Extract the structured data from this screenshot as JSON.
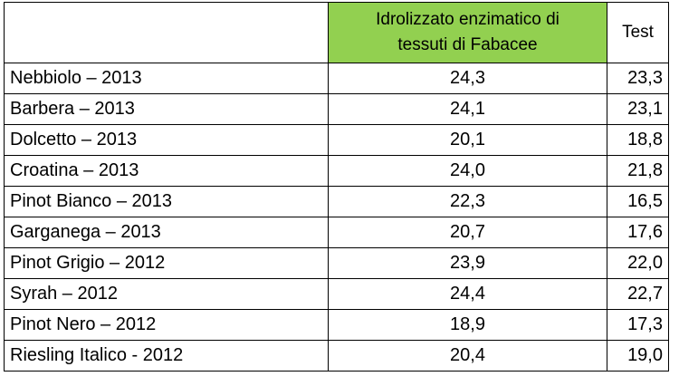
{
  "table": {
    "header": [
      "",
      "Idrolizzato enzimatico di tessuti di Fabacee",
      "Test"
    ],
    "rows": [
      [
        "Nebbiolo – 2013",
        "24,3",
        "23,3"
      ],
      [
        "Barbera – 2013",
        "24,1",
        "23,1"
      ],
      [
        "Dolcetto – 2013",
        "20,1",
        "18,8"
      ],
      [
        "Croatina – 2013",
        "24,0",
        "21,8"
      ],
      [
        "Pinot Bianco – 2013",
        "22,3",
        "16,5"
      ],
      [
        "Garganega – 2013",
        "20,7",
        "17,6"
      ],
      [
        "Pinot Grigio – 2012",
        "23,9",
        "22,0"
      ],
      [
        "Syrah – 2012",
        "24,4",
        "22,7"
      ],
      [
        "Pinot Nero – 2012",
        "18,9",
        "17,3"
      ],
      [
        "Riesling Italico - 2012",
        "20,4",
        "19,0"
      ]
    ]
  }
}
